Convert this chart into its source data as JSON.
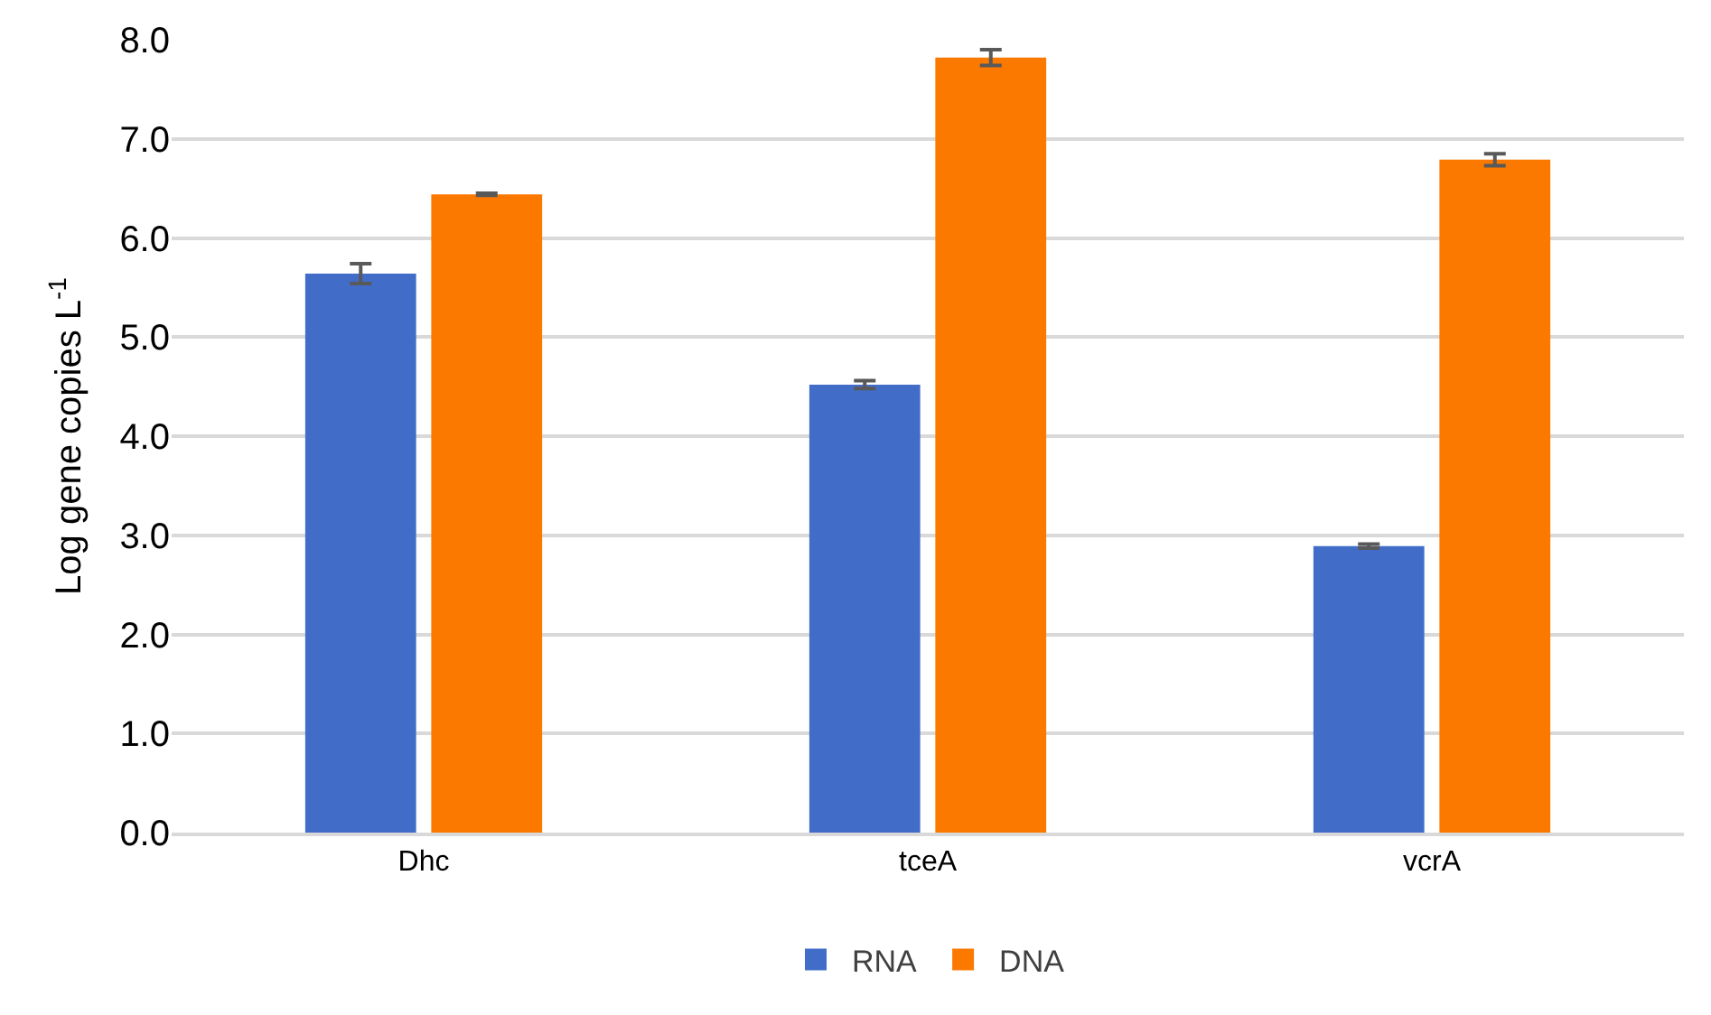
{
  "chart_data": {
    "type": "bar",
    "ylabel": "Log gene copies L$^{-1}$",
    "categories": [
      "Dhc",
      "tceA",
      "vcrA"
    ],
    "series": [
      {
        "name": "RNA",
        "color": "#416dc9",
        "values": [
          5.64,
          4.52,
          2.89
        ],
        "errors": [
          0.1,
          0.04,
          0.02
        ]
      },
      {
        "name": "DNA",
        "color": "#fc7900",
        "values": [
          6.44,
          7.82,
          6.79
        ],
        "errors": [
          0.01,
          0.08,
          0.06
        ]
      }
    ],
    "ylim": [
      0,
      8
    ],
    "yticks": [
      {
        "value": 0,
        "label": "0.0"
      },
      {
        "value": 1,
        "label": "1.0"
      },
      {
        "value": 2,
        "label": "2.0"
      },
      {
        "value": 3,
        "label": "3.0"
      },
      {
        "value": 4,
        "label": "4.0"
      },
      {
        "value": 5,
        "label": "5.0"
      },
      {
        "value": 6,
        "label": "6.0"
      },
      {
        "value": 7,
        "label": "7.0"
      },
      {
        "value": 8,
        "label": "8.0"
      }
    ],
    "grid": "y",
    "legend": "bottom"
  }
}
